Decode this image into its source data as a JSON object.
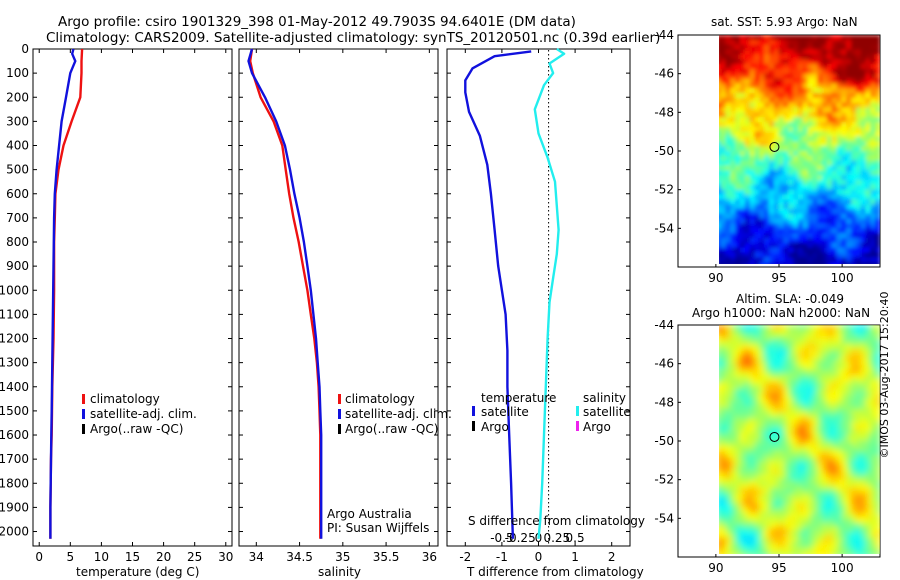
{
  "titles": {
    "line1": "Argo profile: csiro 1901329_398 01-May-2012 49.7903S 94.6401E (DM data)",
    "line2": "Climatology: CARS2009. Satellite-adjusted climatology: synTS_20120501.nc (0.39d earlier)",
    "sst_title": "sat. SST: 5.93 Argo: NaN",
    "sla_title1": "Altim. SLA: -0.049",
    "sla_title2": "Argo h1000: NaN h2000: NaN",
    "watermark": "©IMOS 03-Aug-2017 15:20:40",
    "credit1": "Argo Australia",
    "credit2": "PI: Susan Wijffels"
  },
  "colors": {
    "climatology": "#ee1111",
    "satellite": "#1111dd",
    "argo": "#000000",
    "sal_sat": "#22eeee",
    "sal_argo": "#ee22ee"
  },
  "legend_ts": [
    "climatology",
    "satellite-adj. clim.",
    "Argo(..raw -QC)"
  ],
  "legend_diff": {
    "temp_header": "temperature",
    "sal_header": "salinity",
    "sat": "satellite",
    "argo": "Argo"
  },
  "chart_data": [
    {
      "type": "line",
      "name": "temperature",
      "xlabel": "temperature (deg C)",
      "xlim": [
        -1,
        31
      ],
      "xticks": [
        0,
        5,
        10,
        15,
        20,
        25,
        30
      ],
      "ylim": [
        0,
        2060
      ],
      "yticks": [
        0,
        100,
        200,
        300,
        400,
        500,
        600,
        700,
        800,
        900,
        1000,
        1100,
        1200,
        1300,
        1400,
        1500,
        1600,
        1700,
        1800,
        1900,
        2000
      ],
      "series": [
        {
          "name": "climatology",
          "color": "#ee1111",
          "points": [
            [
              6.9,
              0
            ],
            [
              6.8,
              50
            ],
            [
              6.8,
              100
            ],
            [
              6.6,
              200
            ],
            [
              5.2,
              300
            ],
            [
              3.9,
              400
            ],
            [
              3.1,
              500
            ],
            [
              2.6,
              600
            ],
            [
              2.5,
              700
            ],
            [
              2.4,
              800
            ],
            [
              2.4,
              900
            ],
            [
              2.4,
              1000
            ],
            [
              2.35,
              1100
            ],
            [
              2.3,
              1200
            ],
            [
              2.2,
              1300
            ],
            [
              2.1,
              1400
            ],
            [
              2.05,
              1500
            ],
            [
              2.0,
              1600
            ],
            [
              1.9,
              1700
            ],
            [
              1.85,
              1800
            ],
            [
              1.8,
              1900
            ],
            [
              1.8,
              2030
            ]
          ]
        },
        {
          "name": "satellite-adj. clim.",
          "color": "#1111dd",
          "points": [
            [
              5.5,
              0
            ],
            [
              5.3,
              20
            ],
            [
              5.8,
              50
            ],
            [
              5.0,
              100
            ],
            [
              4.3,
              200
            ],
            [
              3.6,
              300
            ],
            [
              3.2,
              400
            ],
            [
              2.8,
              500
            ],
            [
              2.5,
              600
            ],
            [
              2.4,
              700
            ],
            [
              2.35,
              800
            ],
            [
              2.3,
              900
            ],
            [
              2.25,
              1000
            ],
            [
              2.2,
              1100
            ],
            [
              2.15,
              1200
            ],
            [
              2.1,
              1300
            ],
            [
              2.05,
              1400
            ],
            [
              2.0,
              1500
            ],
            [
              1.95,
              1600
            ],
            [
              1.9,
              1700
            ],
            [
              1.85,
              1800
            ],
            [
              1.8,
              1900
            ],
            [
              1.8,
              2030
            ]
          ]
        }
      ]
    },
    {
      "type": "line",
      "name": "salinity",
      "xlabel": "salinity",
      "xlim": [
        33.8,
        36.1
      ],
      "xticks": [
        34,
        34.5,
        35,
        35.5,
        36
      ],
      "xticklabels": [
        "34",
        "34.5",
        "35",
        "35.5",
        "36"
      ],
      "ylim": [
        0,
        2060
      ],
      "series": [
        {
          "name": "climatology",
          "color": "#ee1111",
          "points": [
            [
              33.95,
              0
            ],
            [
              33.93,
              50
            ],
            [
              33.96,
              100
            ],
            [
              34.05,
              200
            ],
            [
              34.2,
              300
            ],
            [
              34.3,
              400
            ],
            [
              34.34,
              500
            ],
            [
              34.38,
              600
            ],
            [
              34.43,
              700
            ],
            [
              34.49,
              800
            ],
            [
              34.54,
              900
            ],
            [
              34.59,
              1000
            ],
            [
              34.63,
              1100
            ],
            [
              34.67,
              1200
            ],
            [
              34.7,
              1300
            ],
            [
              34.72,
              1400
            ],
            [
              34.73,
              1500
            ],
            [
              34.74,
              1600
            ],
            [
              34.74,
              1700
            ],
            [
              34.74,
              1800
            ],
            [
              34.74,
              1900
            ],
            [
              34.74,
              2030
            ]
          ]
        },
        {
          "name": "satellite-adj. clim.",
          "color": "#1111dd",
          "points": [
            [
              33.95,
              0
            ],
            [
              33.91,
              50
            ],
            [
              33.95,
              100
            ],
            [
              34.1,
              200
            ],
            [
              34.23,
              300
            ],
            [
              34.33,
              400
            ],
            [
              34.39,
              500
            ],
            [
              34.44,
              600
            ],
            [
              34.5,
              700
            ],
            [
              34.55,
              800
            ],
            [
              34.59,
              900
            ],
            [
              34.63,
              1000
            ],
            [
              34.66,
              1100
            ],
            [
              34.69,
              1200
            ],
            [
              34.71,
              1300
            ],
            [
              34.73,
              1400
            ],
            [
              34.74,
              1500
            ],
            [
              34.75,
              1600
            ],
            [
              34.75,
              1700
            ],
            [
              34.75,
              1800
            ],
            [
              34.75,
              1900
            ],
            [
              34.75,
              2030
            ]
          ]
        }
      ]
    },
    {
      "type": "line",
      "name": "difference",
      "xlabel": "T difference from climatology",
      "xlabel_top": "S difference from climatology",
      "xlim": [
        -2.5,
        2.5
      ],
      "xticks": [
        -2,
        -1,
        0,
        1,
        2
      ],
      "s_ticks": [
        -0.5,
        -0.25,
        0,
        0.25,
        0.5
      ],
      "s_ticklabels": [
        "-0.5",
        "-0.25",
        "0",
        "0.25",
        "0.5"
      ],
      "ylim": [
        0,
        2060
      ],
      "series": [
        {
          "name": "temperature satellite",
          "color": "#1111dd",
          "points": [
            [
              -0.2,
              10
            ],
            [
              -1.2,
              30
            ],
            [
              -1.8,
              80
            ],
            [
              -2.0,
              130
            ],
            [
              -2.0,
              180
            ],
            [
              -1.9,
              260
            ],
            [
              -1.6,
              360
            ],
            [
              -1.4,
              480
            ],
            [
              -1.3,
              600
            ],
            [
              -1.2,
              750
            ],
            [
              -1.1,
              900
            ],
            [
              -1.0,
              1000
            ],
            [
              -0.9,
              1100
            ],
            [
              -0.85,
              1250
            ],
            [
              -0.85,
              1400
            ],
            [
              -0.8,
              1600
            ],
            [
              -0.75,
              1800
            ],
            [
              -0.7,
              2030
            ]
          ]
        },
        {
          "name": "salinity satellite",
          "color": "#22eeee",
          "points": [
            [
              0.5,
              0
            ],
            [
              0.7,
              20
            ],
            [
              0.3,
              60
            ],
            [
              0.4,
              100
            ],
            [
              0.15,
              150
            ],
            [
              -0.1,
              250
            ],
            [
              0.0,
              350
            ],
            [
              0.25,
              450
            ],
            [
              0.45,
              550
            ],
            [
              0.5,
              650
            ],
            [
              0.55,
              750
            ],
            [
              0.5,
              850
            ],
            [
              0.4,
              950
            ],
            [
              0.3,
              1050
            ],
            [
              0.25,
              1200
            ],
            [
              0.2,
              1400
            ],
            [
              0.15,
              1600
            ],
            [
              0.1,
              1800
            ],
            [
              0.05,
              1950
            ],
            [
              0.0,
              2030
            ]
          ]
        }
      ]
    },
    {
      "type": "heatmap",
      "name": "sat. SST",
      "xlim": [
        87,
        103
      ],
      "ylim": [
        -56,
        -44
      ],
      "xticks": [
        90,
        95,
        100
      ],
      "yticks": [
        -44,
        -46,
        -48,
        -50,
        -52,
        -54
      ],
      "data_bounds": {
        "lon": [
          90,
          103
        ],
        "lat": [
          -56,
          -44
        ]
      },
      "argo_position": [
        94.64,
        -49.79
      ]
    },
    {
      "type": "heatmap",
      "name": "Altim. SLA",
      "xlim": [
        87,
        103
      ],
      "ylim": [
        -56,
        -44
      ],
      "xticks": [
        90,
        95,
        100
      ],
      "yticks": [
        -44,
        -46,
        -48,
        -50,
        -52,
        -54
      ],
      "data_bounds": {
        "lon": [
          90,
          103
        ],
        "lat": [
          -56,
          -44
        ]
      },
      "argo_position": [
        94.64,
        -49.79
      ]
    }
  ]
}
